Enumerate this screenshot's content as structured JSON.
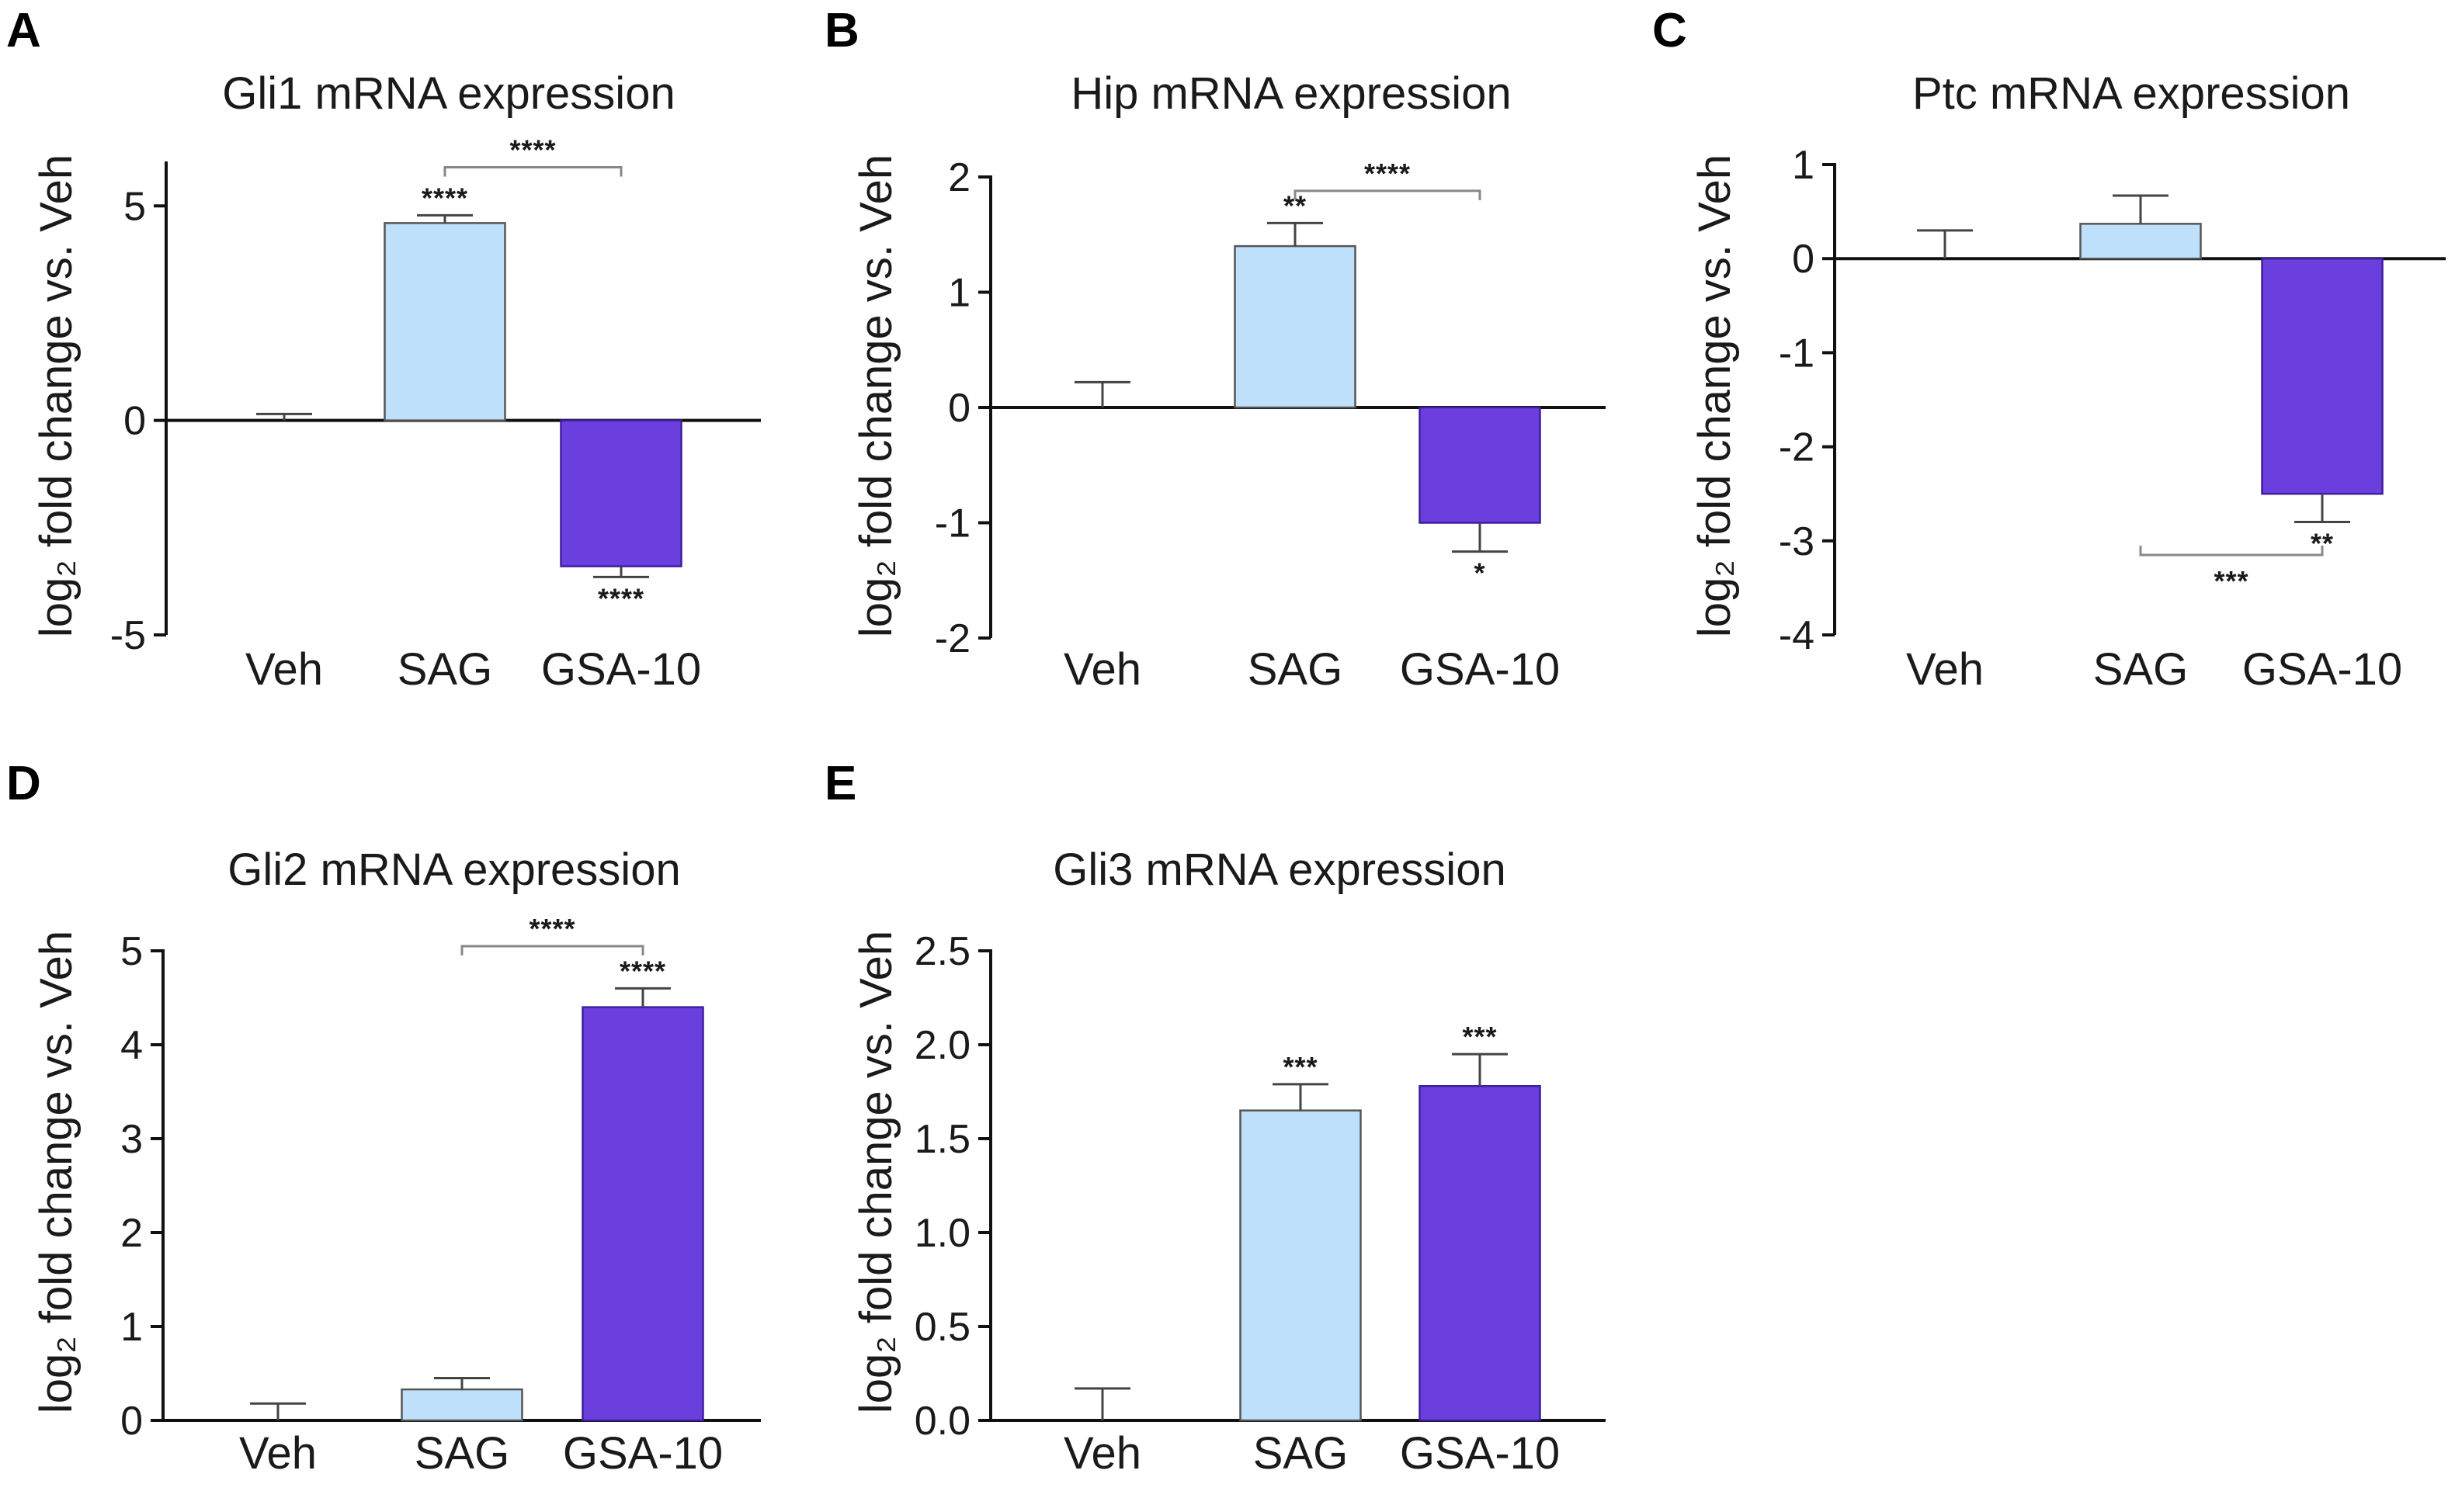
{
  "legend_colors": {
    "Veh": "#ffffff",
    "SAG": "#bfe0fb",
    "GSA-10": "#6b3fde"
  },
  "chart_data": [
    {
      "panel": "A",
      "type": "bar",
      "title": "Gli1 mRNA expression",
      "ylabel": "log₂ fold change vs. Veh",
      "xlabel": "",
      "categories": [
        "Veh",
        "SAG",
        "GSA-10"
      ],
      "values": [
        0,
        4.6,
        -3.4
      ],
      "errors": [
        0.15,
        0.18,
        0.25
      ],
      "ylim": [
        -5,
        6
      ],
      "yticks": [
        -5,
        0,
        5
      ],
      "yticklabels": [
        "-5",
        "0",
        "5"
      ],
      "significance": [
        {
          "category": "SAG",
          "label": "****",
          "position": "above"
        },
        {
          "category": "GSA-10",
          "label": "****",
          "position": "below"
        }
      ],
      "brackets": [
        {
          "from": "SAG",
          "to": "GSA-10",
          "label": "****",
          "y": 5.9
        }
      ]
    },
    {
      "panel": "B",
      "type": "bar",
      "title": "Hip mRNA expression",
      "ylabel": "log₂ fold change vs. Veh",
      "xlabel": "",
      "categories": [
        "Veh",
        "SAG",
        "GSA-10"
      ],
      "values": [
        0,
        1.4,
        -1.0
      ],
      "errors": [
        0.22,
        0.2,
        0.25
      ],
      "ylim": [
        -2,
        2
      ],
      "yticks": [
        -2,
        -1,
        0,
        1,
        2
      ],
      "yticklabels": [
        "-2",
        "-1",
        "0",
        "1",
        "2"
      ],
      "significance": [
        {
          "category": "SAG",
          "label": "**",
          "position": "above"
        },
        {
          "category": "GSA-10",
          "label": "*",
          "position": "below"
        }
      ],
      "brackets": [
        {
          "from": "SAG",
          "to": "GSA-10",
          "label": "****",
          "y": 1.88
        }
      ]
    },
    {
      "panel": "C",
      "type": "bar",
      "title": "Ptc mRNA expression",
      "ylabel": "log₂ fold change vs. Veh",
      "xlabel": "",
      "categories": [
        "Veh",
        "SAG",
        "GSA-10"
      ],
      "values": [
        0,
        0.37,
        -2.5
      ],
      "errors": [
        0.3,
        0.3,
        0.3
      ],
      "ylim": [
        -4,
        1
      ],
      "yticks": [
        -4,
        -3,
        -2,
        -1,
        0,
        1
      ],
      "yticklabels": [
        "-4",
        "-3",
        "-2",
        "-1",
        "0",
        "1"
      ],
      "significance": [
        {
          "category": "GSA-10",
          "label": "**",
          "position": "below"
        }
      ],
      "brackets": [
        {
          "from": "SAG",
          "to": "GSA-10",
          "label": "***",
          "y": -3.15,
          "direction": "down"
        }
      ]
    },
    {
      "panel": "D",
      "type": "bar",
      "title": "Gli2 mRNA expression",
      "ylabel": "log₂ fold change vs. Veh",
      "xlabel": "",
      "categories": [
        "Veh",
        "SAG",
        "GSA-10"
      ],
      "values": [
        0,
        0.33,
        4.4
      ],
      "errors": [
        0.18,
        0.12,
        0.2
      ],
      "ylim": [
        0,
        5
      ],
      "yticks": [
        0,
        1,
        2,
        3,
        4,
        5
      ],
      "yticklabels": [
        "0",
        "1",
        "2",
        "3",
        "4",
        "5"
      ],
      "significance": [
        {
          "category": "GSA-10",
          "label": "****",
          "position": "above"
        }
      ],
      "brackets": [
        {
          "from": "SAG",
          "to": "GSA-10",
          "label": "****",
          "y": 5.05
        }
      ]
    },
    {
      "panel": "E",
      "type": "bar",
      "title": "Gli3 mRNA expression",
      "ylabel": "log₂ fold change vs. Veh",
      "xlabel": "",
      "categories": [
        "Veh",
        "SAG",
        "GSA-10"
      ],
      "values": [
        0,
        1.65,
        1.78
      ],
      "errors": [
        0.17,
        0.14,
        0.17
      ],
      "ylim": [
        0,
        2.5
      ],
      "yticks": [
        0,
        0.5,
        1.0,
        1.5,
        2.0,
        2.5
      ],
      "yticklabels": [
        "0.0",
        "0.5",
        "1.0",
        "1.5",
        "2.0",
        "2.5"
      ],
      "significance": [
        {
          "category": "SAG",
          "label": "***",
          "position": "above"
        },
        {
          "category": "GSA-10",
          "label": "***",
          "position": "above"
        }
      ],
      "brackets": []
    }
  ]
}
